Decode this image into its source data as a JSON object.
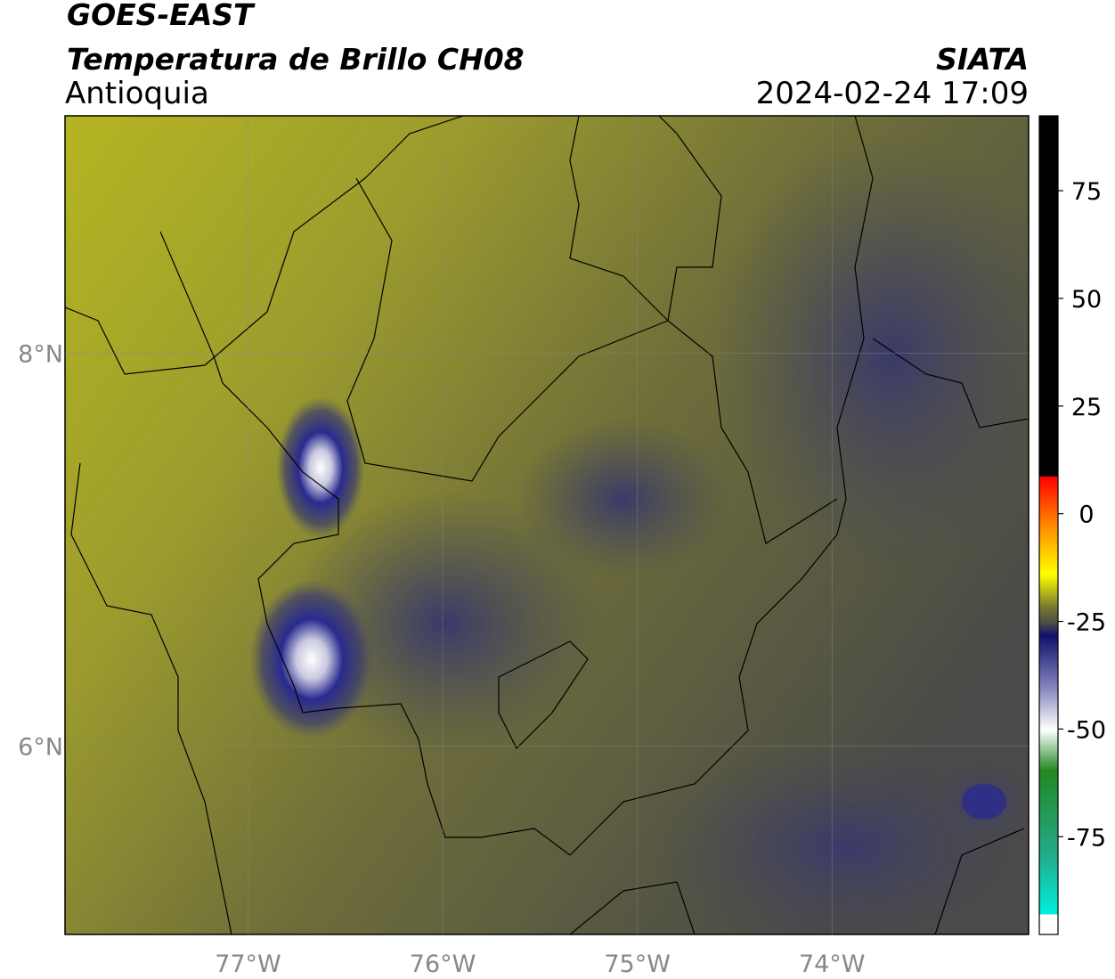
{
  "header": {
    "title": "GOES-EAST",
    "subtitle": "Temperatura de Brillo CH08",
    "region": "Antioquia",
    "source": "SIATA",
    "datetime": "2024-02-24 17:09"
  },
  "map": {
    "xlim": [
      -77.94,
      -72.99
    ],
    "ylim": [
      5.04,
      9.21
    ],
    "lon_ticks": [
      {
        "value": -77,
        "label": "77°W"
      },
      {
        "value": -76,
        "label": "76°W"
      },
      {
        "value": -75,
        "label": "75°W"
      },
      {
        "value": -74,
        "label": "74°W"
      }
    ],
    "lat_ticks": [
      {
        "value": 8,
        "label": "8°N"
      },
      {
        "value": 6,
        "label": "6°N"
      }
    ]
  },
  "colorbar": {
    "lim": [
      -97.7,
      92.4
    ],
    "ticks": [
      75,
      50,
      25,
      0,
      -25,
      -50,
      -75
    ]
  }
}
